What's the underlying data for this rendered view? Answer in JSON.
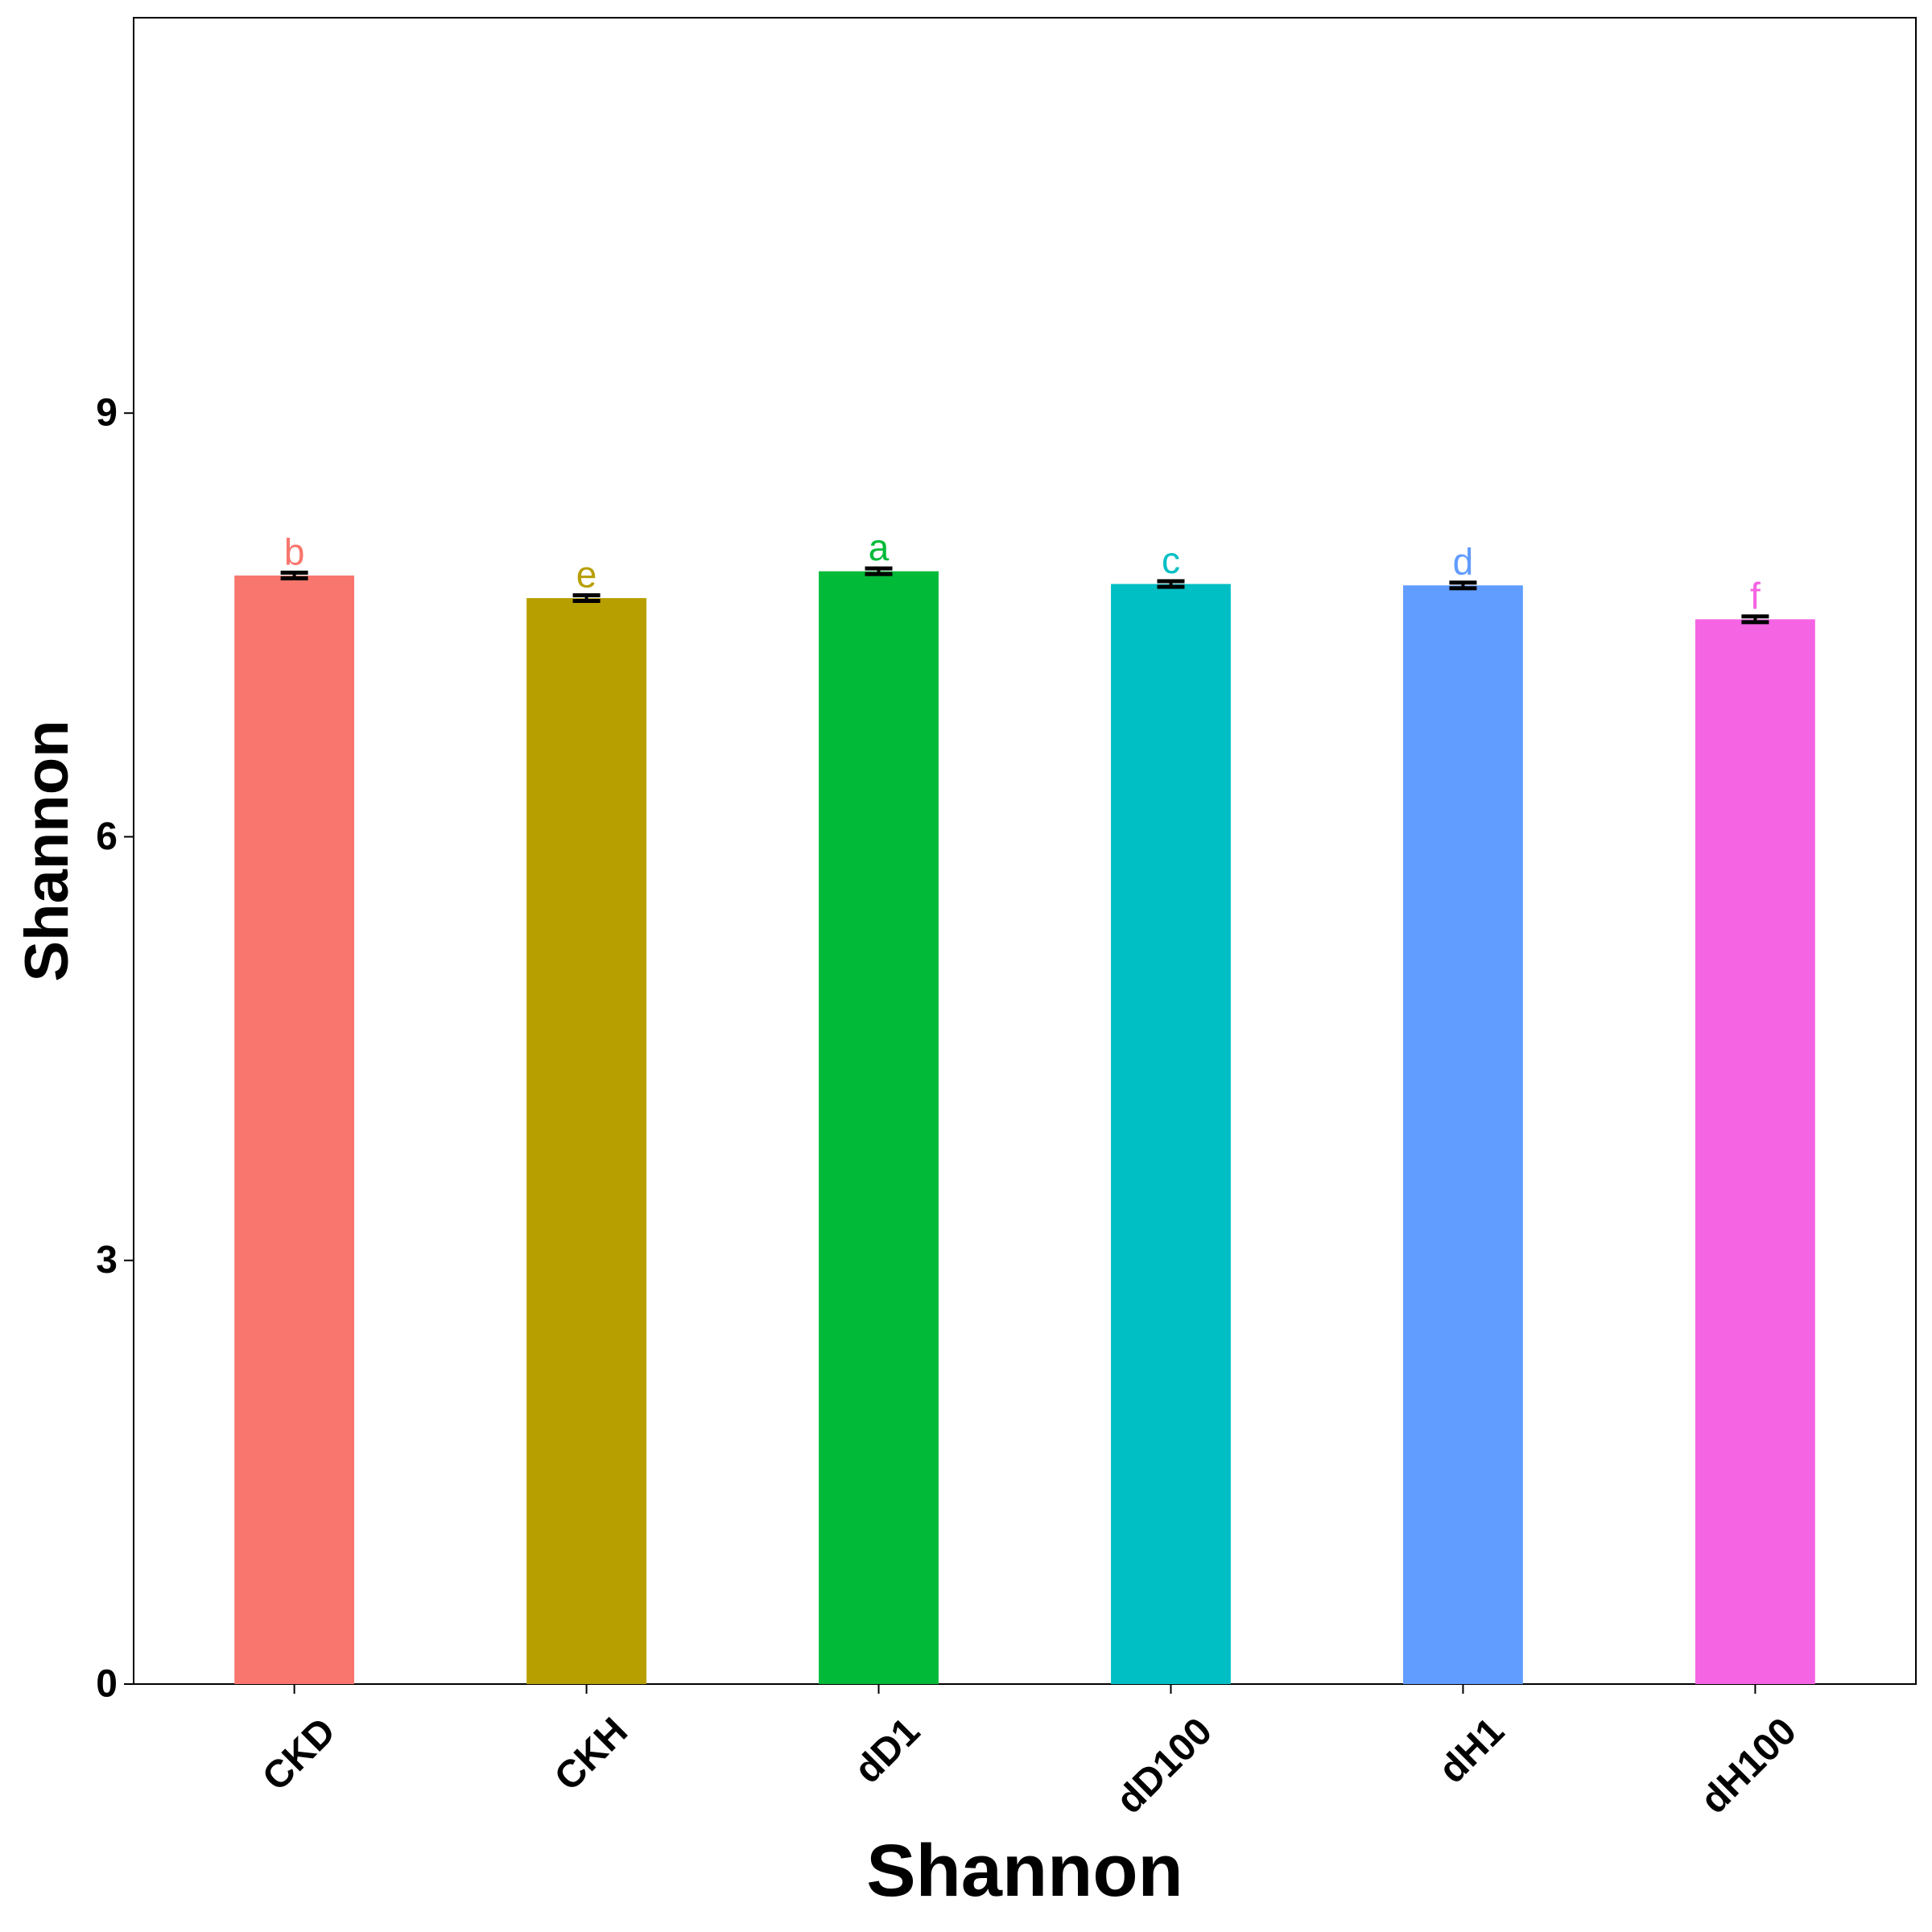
{
  "chart_data": {
    "type": "bar",
    "title": "",
    "xlabel": "Shannon",
    "ylabel": "Shannon",
    "categories": [
      "CKD",
      "CKH",
      "dD1",
      "dD100",
      "dH1",
      "dH100"
    ],
    "values": [
      7.85,
      7.69,
      7.88,
      7.79,
      7.78,
      7.54
    ],
    "errors": [
      0.02,
      0.02,
      0.02,
      0.02,
      0.02,
      0.02
    ],
    "significance_labels": [
      "b",
      "e",
      "a",
      "c",
      "d",
      "f"
    ],
    "colors": [
      "#F8766D",
      "#B79F00",
      "#00BA38",
      "#00BFC4",
      "#619CFF",
      "#F564E3"
    ],
    "ylim": [
      0,
      11.8
    ],
    "yticks": [
      0,
      3,
      6,
      9
    ],
    "grid": false,
    "legend": "none"
  }
}
